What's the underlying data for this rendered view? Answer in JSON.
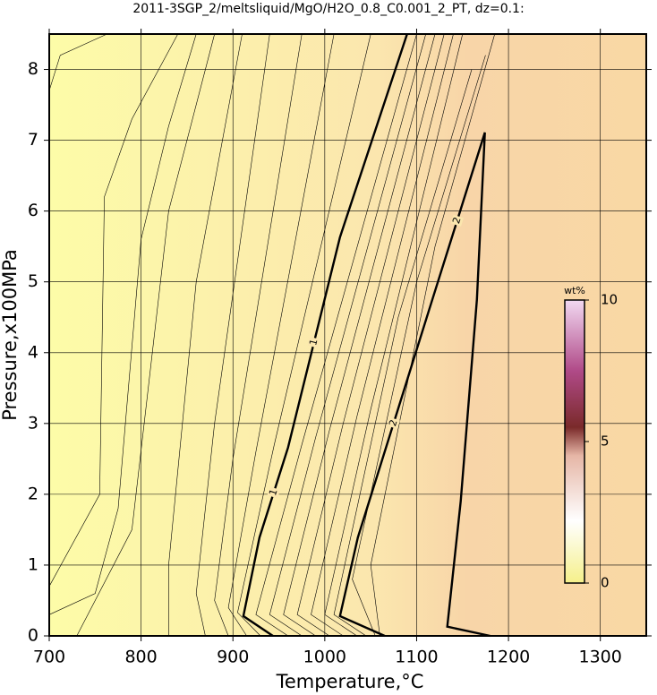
{
  "chart_data": {
    "type": "contour",
    "title": "2011-3SGP_2/meltsliquid/MgO/H2O_0.8_C0.001_2_PT, dz=0.1:",
    "xlabel": "Temperature,°C",
    "ylabel": "Pressure,x100MPa",
    "xlim": [
      700,
      1350
    ],
    "ylim": [
      0,
      8.5
    ],
    "xticks": [
      700,
      800,
      900,
      1000,
      1100,
      1200,
      1300
    ],
    "yticks": [
      0,
      1,
      2,
      3,
      4,
      5,
      6,
      7,
      8
    ],
    "grid": true,
    "colorbar": {
      "label": "wt%",
      "lim": [
        0,
        10
      ],
      "ticks": [
        0,
        5,
        10
      ]
    },
    "contours": [
      {
        "level": 0.1,
        "x": [
          700,
          712,
          763
        ],
        "y": [
          7.7,
          8.2,
          8.5
        ]
      },
      {
        "level": 0.2,
        "x": [
          700,
          755,
          760,
          790,
          840
        ],
        "y": [
          0.7,
          2.0,
          6.2,
          7.3,
          8.5
        ]
      },
      {
        "level": 0.3,
        "x": [
          700,
          750,
          775,
          800,
          830,
          860
        ],
        "y": [
          0.3,
          0.6,
          1.8,
          5.6,
          7.2,
          8.5
        ]
      },
      {
        "level": 0.4,
        "x": [
          730,
          790,
          830,
          880
        ],
        "y": [
          0,
          1.5,
          6,
          8.5
        ]
      },
      {
        "level": 0.5,
        "x": [
          830,
          830,
          860,
          910
        ],
        "y": [
          0,
          1,
          5,
          8.5
        ]
      },
      {
        "level": 0.6,
        "x": [
          870,
          860,
          880,
          940
        ],
        "y": [
          0,
          0.6,
          3,
          8.5
        ]
      },
      {
        "level": 0.7,
        "x": [
          895,
          880,
          900,
          975
        ],
        "y": [
          0,
          0.5,
          2.5,
          8.5
        ]
      },
      {
        "level": 0.8,
        "x": [
          915,
          895,
          925,
          1010
        ],
        "y": [
          0,
          0.4,
          2.6,
          8.5
        ]
      },
      {
        "level": 0.9,
        "x": [
          930,
          905,
          945,
          1050
        ],
        "y": [
          0,
          0.33,
          2.7,
          8.5
        ]
      },
      {
        "level": 1,
        "x": [
          943.5,
          911.4,
          928.9,
          960,
          1016.5,
          1089.6
        ],
        "y": [
          0,
          0.28,
          1.39,
          2.66,
          5.63,
          8.5
        ]
      },
      {
        "level": 1.1,
        "x": [
          960,
          925,
          975,
          1100
        ],
        "y": [
          0,
          0.3,
          2.7,
          8.5
        ]
      },
      {
        "level": 1.2,
        "x": [
          975,
          940,
          990,
          1110
        ],
        "y": [
          0,
          0.3,
          2.8,
          8.5
        ]
      },
      {
        "level": 1.3,
        "x": [
          990,
          955,
          1005,
          1120
        ],
        "y": [
          0,
          0.3,
          2.9,
          8.5
        ]
      },
      {
        "level": 1.4,
        "x": [
          1005,
          970,
          1020,
          1130
        ],
        "y": [
          0,
          0.3,
          3,
          8.5
        ]
      },
      {
        "level": 1.5,
        "x": [
          1020,
          985,
          1035,
          1140
        ],
        "y": [
          0,
          0.3,
          3.1,
          8.5
        ]
      },
      {
        "level": 1.6,
        "x": [
          1035,
          1000,
          1050,
          1150
        ],
        "y": [
          0,
          0.3,
          3.2,
          8.5
        ]
      },
      {
        "level": 1.7,
        "x": [
          1045,
          1010,
          1080,
          1160
        ],
        "y": [
          0,
          0.3,
          4.5,
          8.0
        ]
      },
      {
        "level": 1.8,
        "x": [
          1055,
          1030,
          1100,
          1175
        ],
        "y": [
          0,
          0.8,
          5,
          8.2
        ]
      },
      {
        "level": 1.9,
        "x": [
          1060,
          1050,
          1120,
          1185
        ],
        "y": [
          0,
          1.0,
          5.5,
          8.5
        ]
      },
      {
        "level": 2,
        "x": [
          1065.2,
          1016.5,
          1036,
          1114,
          1174.3,
          1165.6,
          1148,
          1133.4,
          1180
        ],
        "y": [
          0,
          0.28,
          1.39,
          4.62,
          7.11,
          4.75,
          1.9,
          0.13,
          0
        ]
      }
    ]
  }
}
